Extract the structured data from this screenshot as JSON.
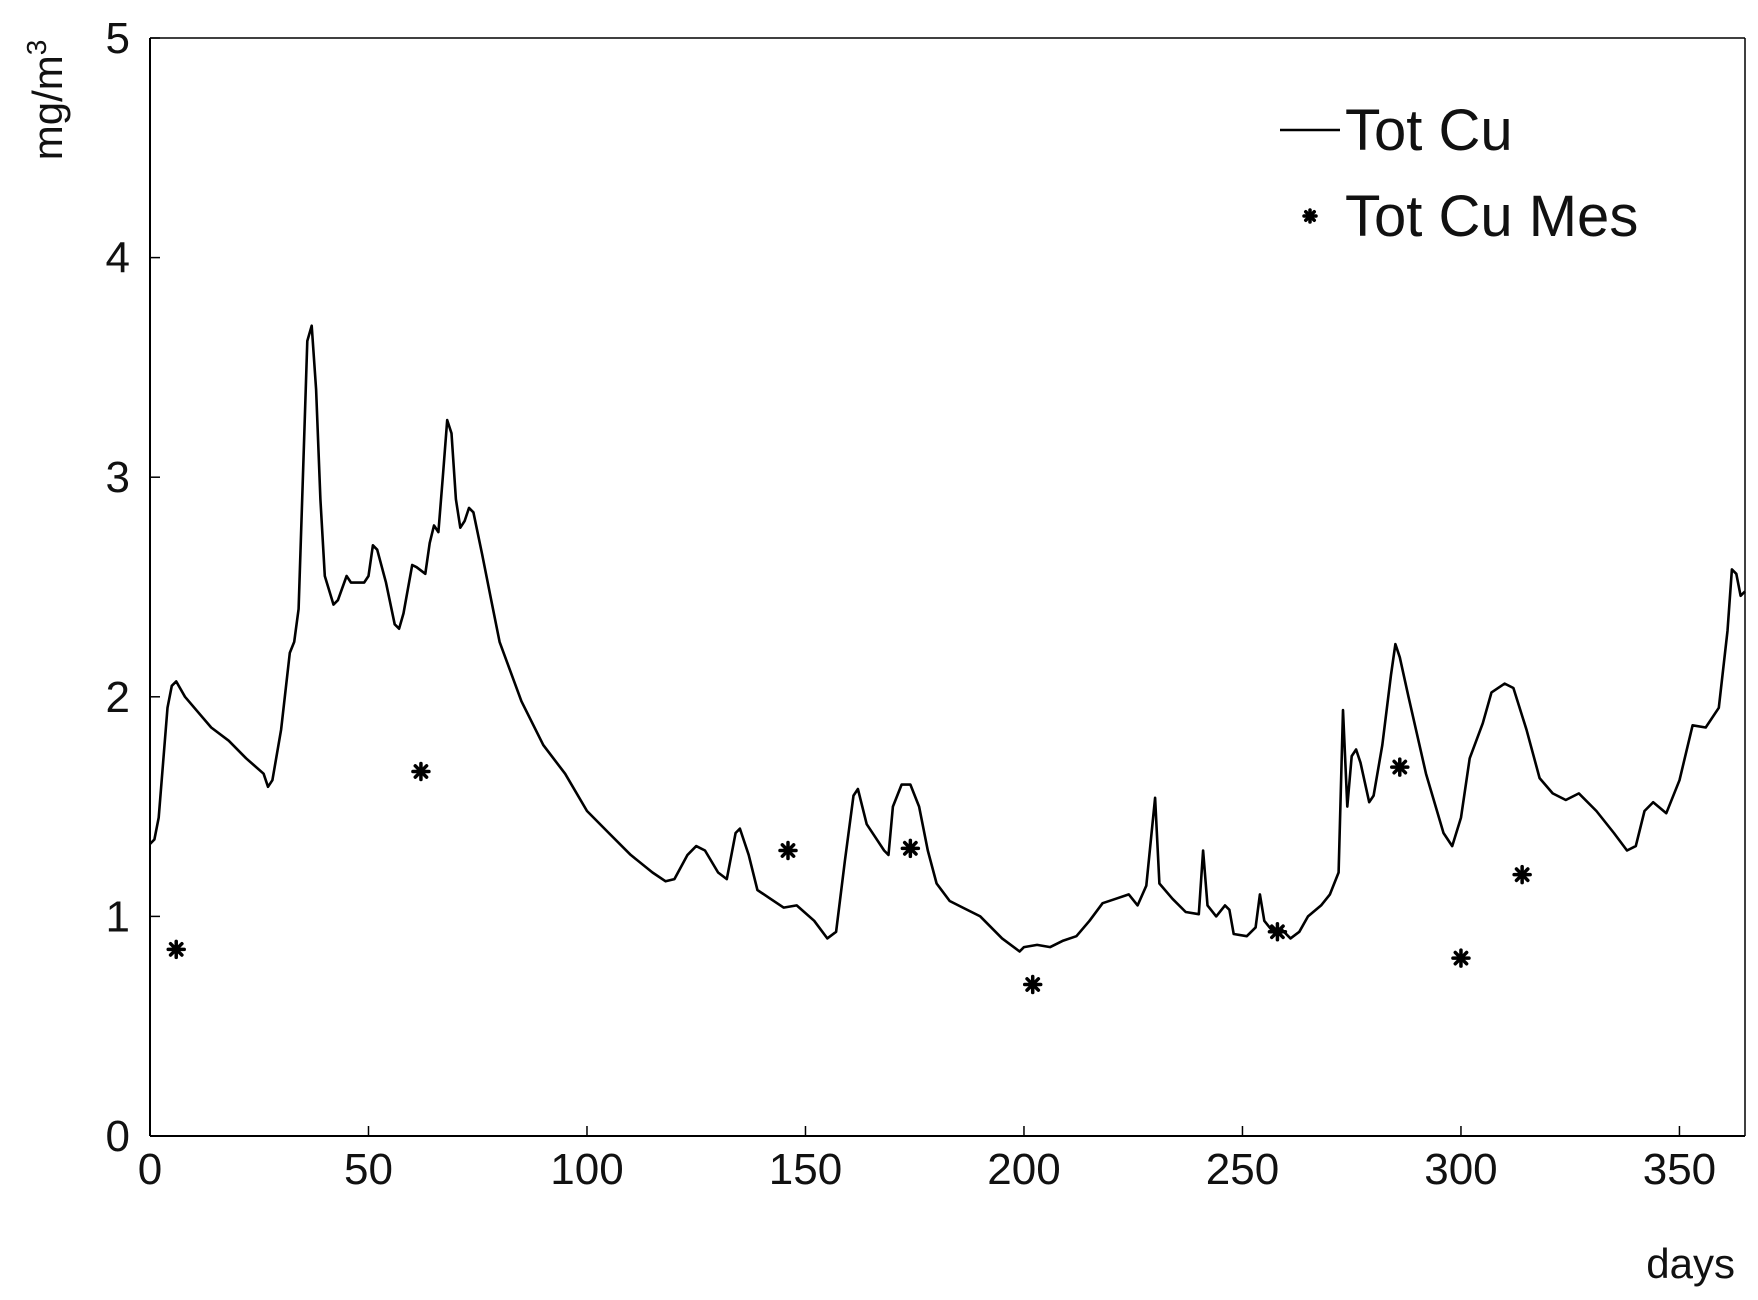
{
  "chart_data": {
    "type": "line",
    "title": "",
    "xlabel": "days",
    "ylabel": "mg/m",
    "ylabel_superscript": "3",
    "xlim": [
      0,
      365
    ],
    "ylim": [
      0,
      5
    ],
    "xticks": [
      0,
      50,
      100,
      150,
      200,
      250,
      300,
      350
    ],
    "yticks": [
      0,
      1,
      2,
      3,
      4,
      5
    ],
    "grid": false,
    "legend_position": "top-right",
    "series": [
      {
        "name": "Tot Cu",
        "style": "line",
        "color": "#000000",
        "points": [
          [
            0,
            1.33
          ],
          [
            1,
            1.35
          ],
          [
            2,
            1.45
          ],
          [
            3,
            1.7
          ],
          [
            4,
            1.95
          ],
          [
            5,
            2.05
          ],
          [
            6,
            2.07
          ],
          [
            8,
            2.0
          ],
          [
            11,
            1.93
          ],
          [
            14,
            1.86
          ],
          [
            18,
            1.8
          ],
          [
            22,
            1.72
          ],
          [
            26,
            1.65
          ],
          [
            27,
            1.59
          ],
          [
            28,
            1.62
          ],
          [
            30,
            1.85
          ],
          [
            32,
            2.2
          ],
          [
            33,
            2.25
          ],
          [
            34,
            2.4
          ],
          [
            35,
            3.0
          ],
          [
            36,
            3.62
          ],
          [
            37,
            3.69
          ],
          [
            38,
            3.4
          ],
          [
            39,
            2.9
          ],
          [
            40,
            2.55
          ],
          [
            42,
            2.42
          ],
          [
            43,
            2.44
          ],
          [
            45,
            2.55
          ],
          [
            46,
            2.52
          ],
          [
            49,
            2.52
          ],
          [
            50,
            2.55
          ],
          [
            51,
            2.69
          ],
          [
            52,
            2.67
          ],
          [
            54,
            2.52
          ],
          [
            56,
            2.33
          ],
          [
            57,
            2.31
          ],
          [
            58,
            2.38
          ],
          [
            60,
            2.6
          ],
          [
            61,
            2.59
          ],
          [
            63,
            2.56
          ],
          [
            64,
            2.7
          ],
          [
            65,
            2.78
          ],
          [
            66,
            2.75
          ],
          [
            67,
            3.0
          ],
          [
            68,
            3.26
          ],
          [
            69,
            3.2
          ],
          [
            70,
            2.9
          ],
          [
            71,
            2.77
          ],
          [
            72,
            2.8
          ],
          [
            73,
            2.86
          ],
          [
            74,
            2.84
          ],
          [
            76,
            2.65
          ],
          [
            78,
            2.45
          ],
          [
            80,
            2.25
          ],
          [
            85,
            1.98
          ],
          [
            90,
            1.78
          ],
          [
            95,
            1.65
          ],
          [
            100,
            1.48
          ],
          [
            105,
            1.38
          ],
          [
            110,
            1.28
          ],
          [
            115,
            1.2
          ],
          [
            118,
            1.16
          ],
          [
            120,
            1.17
          ],
          [
            123,
            1.28
          ],
          [
            125,
            1.32
          ],
          [
            127,
            1.3
          ],
          [
            130,
            1.2
          ],
          [
            132,
            1.17
          ],
          [
            134,
            1.38
          ],
          [
            135,
            1.4
          ],
          [
            137,
            1.28
          ],
          [
            139,
            1.12
          ],
          [
            142,
            1.08
          ],
          [
            145,
            1.04
          ],
          [
            148,
            1.05
          ],
          [
            152,
            0.98
          ],
          [
            155,
            0.9
          ],
          [
            157,
            0.93
          ],
          [
            159,
            1.25
          ],
          [
            161,
            1.55
          ],
          [
            162,
            1.58
          ],
          [
            164,
            1.42
          ],
          [
            166,
            1.36
          ],
          [
            168,
            1.3
          ],
          [
            169,
            1.28
          ],
          [
            170,
            1.5
          ],
          [
            172,
            1.6
          ],
          [
            174,
            1.6
          ],
          [
            176,
            1.5
          ],
          [
            178,
            1.3
          ],
          [
            180,
            1.15
          ],
          [
            183,
            1.07
          ],
          [
            186,
            1.04
          ],
          [
            190,
            1.0
          ],
          [
            195,
            0.9
          ],
          [
            199,
            0.84
          ],
          [
            200,
            0.86
          ],
          [
            203,
            0.87
          ],
          [
            206,
            0.86
          ],
          [
            209,
            0.89
          ],
          [
            212,
            0.91
          ],
          [
            215,
            0.98
          ],
          [
            218,
            1.06
          ],
          [
            221,
            1.08
          ],
          [
            224,
            1.1
          ],
          [
            226,
            1.05
          ],
          [
            228,
            1.14
          ],
          [
            230,
            1.54
          ],
          [
            231,
            1.15
          ],
          [
            234,
            1.08
          ],
          [
            237,
            1.02
          ],
          [
            240,
            1.01
          ],
          [
            241,
            1.3
          ],
          [
            242,
            1.05
          ],
          [
            244,
            1.0
          ],
          [
            246,
            1.05
          ],
          [
            247,
            1.03
          ],
          [
            248,
            0.92
          ],
          [
            251,
            0.91
          ],
          [
            253,
            0.95
          ],
          [
            254,
            1.1
          ],
          [
            255,
            0.98
          ],
          [
            257,
            0.93
          ],
          [
            259,
            0.94
          ],
          [
            261,
            0.9
          ],
          [
            263,
            0.93
          ],
          [
            265,
            1.0
          ],
          [
            268,
            1.05
          ],
          [
            270,
            1.1
          ],
          [
            272,
            1.2
          ],
          [
            273,
            1.94
          ],
          [
            274,
            1.5
          ],
          [
            275,
            1.73
          ],
          [
            276,
            1.76
          ],
          [
            277,
            1.7
          ],
          [
            279,
            1.52
          ],
          [
            280,
            1.55
          ],
          [
            282,
            1.78
          ],
          [
            284,
            2.1
          ],
          [
            285,
            2.24
          ],
          [
            286,
            2.18
          ],
          [
            288,
            2.0
          ],
          [
            292,
            1.65
          ],
          [
            296,
            1.38
          ],
          [
            298,
            1.32
          ],
          [
            300,
            1.45
          ],
          [
            302,
            1.72
          ],
          [
            305,
            1.88
          ],
          [
            307,
            2.02
          ],
          [
            310,
            2.06
          ],
          [
            312,
            2.04
          ],
          [
            315,
            1.85
          ],
          [
            318,
            1.63
          ],
          [
            321,
            1.56
          ],
          [
            324,
            1.53
          ],
          [
            327,
            1.56
          ],
          [
            331,
            1.48
          ],
          [
            335,
            1.38
          ],
          [
            338,
            1.3
          ],
          [
            340,
            1.32
          ],
          [
            342,
            1.48
          ],
          [
            344,
            1.52
          ],
          [
            347,
            1.47
          ],
          [
            350,
            1.62
          ],
          [
            353,
            1.87
          ],
          [
            356,
            1.86
          ],
          [
            359,
            1.95
          ],
          [
            361,
            2.3
          ],
          [
            362,
            2.58
          ],
          [
            363,
            2.56
          ],
          [
            364,
            2.46
          ],
          [
            365,
            2.48
          ]
        ]
      },
      {
        "name": "Tot Cu Mes",
        "style": "marker",
        "marker": "asterisk",
        "color": "#000000",
        "points": [
          [
            6,
            0.85
          ],
          [
            62,
            1.66
          ],
          [
            146,
            1.3
          ],
          [
            174,
            1.31
          ],
          [
            202,
            0.69
          ],
          [
            258,
            0.93
          ],
          [
            286,
            1.68
          ],
          [
            300,
            0.81
          ],
          [
            314,
            1.19
          ]
        ]
      }
    ]
  }
}
